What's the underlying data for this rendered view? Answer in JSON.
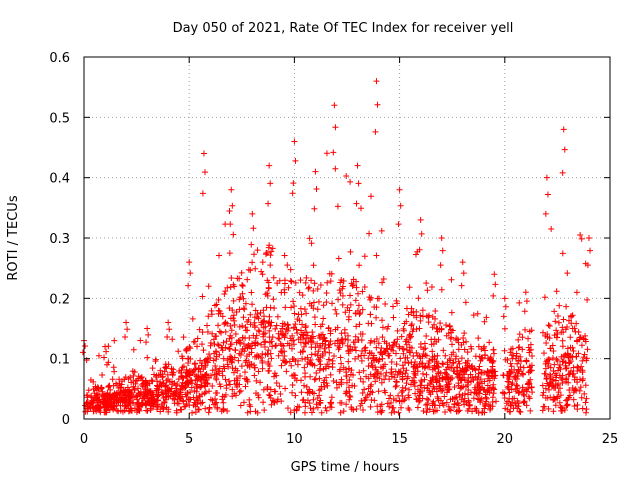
{
  "chart_data": {
    "type": "scatter",
    "title": "Day 050 of 2021, Rate Of TEC Index for receiver yell",
    "xlabel": "GPS time / hours",
    "ylabel": "ROTI / TECUs",
    "xlim": [
      0,
      25
    ],
    "ylim": [
      0,
      0.6
    ],
    "xticks": [
      "0",
      "5",
      "10",
      "15",
      "20",
      "25"
    ],
    "yticks": [
      "0",
      "0.1",
      "0.2",
      "0.3",
      "0.4",
      "0.5",
      "0.6"
    ],
    "grid": true,
    "marker": "+",
    "color": "#ff0000",
    "series": [
      {
        "name": "ROTI",
        "envelope": [
          {
            "x": 0.0,
            "typical": 0.03,
            "max": 0.13
          },
          {
            "x": 1.0,
            "typical": 0.03,
            "max": 0.12
          },
          {
            "x": 2.0,
            "typical": 0.04,
            "max": 0.16
          },
          {
            "x": 3.0,
            "typical": 0.04,
            "max": 0.15
          },
          {
            "x": 4.0,
            "typical": 0.05,
            "max": 0.16
          },
          {
            "x": 5.0,
            "typical": 0.07,
            "max": 0.26
          },
          {
            "x": 5.7,
            "typical": 0.09,
            "max": 0.44
          },
          {
            "x": 7.0,
            "typical": 0.13,
            "max": 0.38
          },
          {
            "x": 8.0,
            "typical": 0.15,
            "max": 0.34
          },
          {
            "x": 8.8,
            "typical": 0.16,
            "max": 0.42
          },
          {
            "x": 10.0,
            "typical": 0.14,
            "max": 0.46
          },
          {
            "x": 11.0,
            "typical": 0.13,
            "max": 0.41
          },
          {
            "x": 11.9,
            "typical": 0.14,
            "max": 0.52
          },
          {
            "x": 13.0,
            "typical": 0.13,
            "max": 0.42
          },
          {
            "x": 13.9,
            "typical": 0.12,
            "max": 0.56
          },
          {
            "x": 15.0,
            "typical": 0.11,
            "max": 0.38
          },
          {
            "x": 16.0,
            "typical": 0.1,
            "max": 0.33
          },
          {
            "x": 17.0,
            "typical": 0.09,
            "max": 0.3
          },
          {
            "x": 18.0,
            "typical": 0.08,
            "max": 0.26
          },
          {
            "x": 19.5,
            "typical": 0.07,
            "max": 0.24
          },
          {
            "x": 20.0,
            "typical": 0.07,
            "max": 0.2
          },
          {
            "x": 21.0,
            "typical": 0.08,
            "max": 0.21
          },
          {
            "x": 22.0,
            "typical": 0.09,
            "max": 0.4
          },
          {
            "x": 22.8,
            "typical": 0.1,
            "max": 0.48
          },
          {
            "x": 24.0,
            "typical": 0.09,
            "max": 0.3
          }
        ],
        "gaps": [
          [
            19.6,
            19.9
          ],
          [
            21.3,
            21.8
          ]
        ]
      }
    ]
  }
}
